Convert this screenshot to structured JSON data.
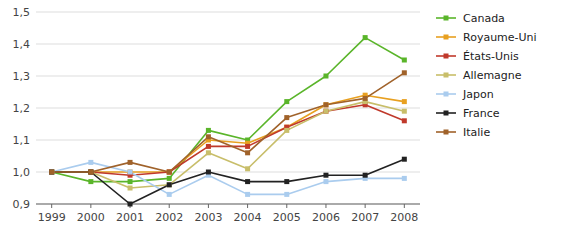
{
  "chart_data": {
    "type": "line",
    "x": [
      1999,
      2000,
      2001,
      2002,
      2003,
      2004,
      2005,
      2006,
      2007,
      2008
    ],
    "xlim": [
      1998.6,
      2008.4
    ],
    "xticks": [
      1999,
      2000,
      2001,
      2002,
      2003,
      2004,
      2005,
      2006,
      2007,
      2008
    ],
    "ylim": [
      0.9,
      1.5
    ],
    "yticks": [
      {
        "value": 0.9,
        "label": "0,9"
      },
      {
        "value": 1.0,
        "label": "1,0"
      },
      {
        "value": 1.1,
        "label": "1,1"
      },
      {
        "value": 1.2,
        "label": "1,2"
      },
      {
        "value": 1.3,
        "label": "1,3"
      },
      {
        "value": 1.4,
        "label": "1,4"
      },
      {
        "value": 1.5,
        "label": "1,5"
      }
    ],
    "grid": true,
    "legend": "right",
    "marker": "square",
    "series": [
      {
        "name": "Canada",
        "color": "#5ab52a",
        "values": [
          1.0,
          0.97,
          0.97,
          0.98,
          1.13,
          1.1,
          1.22,
          1.3,
          1.42,
          1.35
        ]
      },
      {
        "name": "Royaume-Uni",
        "color": "#e8a020",
        "values": [
          1.0,
          1.0,
          1.0,
          1.0,
          1.1,
          1.09,
          1.14,
          1.21,
          1.24,
          1.22
        ]
      },
      {
        "name": "États-Unis",
        "color": "#c0392b",
        "values": [
          1.0,
          1.0,
          0.99,
          1.0,
          1.08,
          1.08,
          1.14,
          1.19,
          1.21,
          1.16
        ]
      },
      {
        "name": "Allemagne",
        "color": "#c8be6a",
        "values": [
          1.0,
          1.0,
          0.95,
          0.96,
          1.06,
          1.01,
          1.13,
          1.19,
          1.22,
          1.19
        ]
      },
      {
        "name": "Japon",
        "color": "#aaccee",
        "values": [
          1.0,
          1.03,
          1.0,
          0.93,
          0.99,
          0.93,
          0.93,
          0.97,
          0.98,
          0.98
        ]
      },
      {
        "name": "France",
        "color": "#222222",
        "values": [
          1.0,
          1.0,
          0.9,
          0.96,
          1.0,
          0.97,
          0.97,
          0.99,
          0.99,
          1.04
        ]
      },
      {
        "name": "Italie",
        "color": "#a0622a",
        "values": [
          1.0,
          1.0,
          1.03,
          1.0,
          1.11,
          1.06,
          1.17,
          1.21,
          1.23,
          1.31
        ]
      }
    ]
  }
}
